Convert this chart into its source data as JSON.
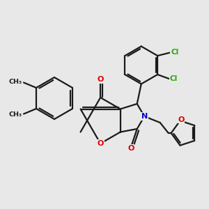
{
  "bg_color": "#e8e8e8",
  "bond_color": "#1a1a1a",
  "bond_width": 1.6,
  "red": "#dd0000",
  "blue": "#0000cc",
  "green": "#22aa00",
  "figsize": [
    3.0,
    3.0
  ],
  "dpi": 100,
  "xlim": [
    0,
    10
  ],
  "ylim": [
    0,
    10
  ]
}
